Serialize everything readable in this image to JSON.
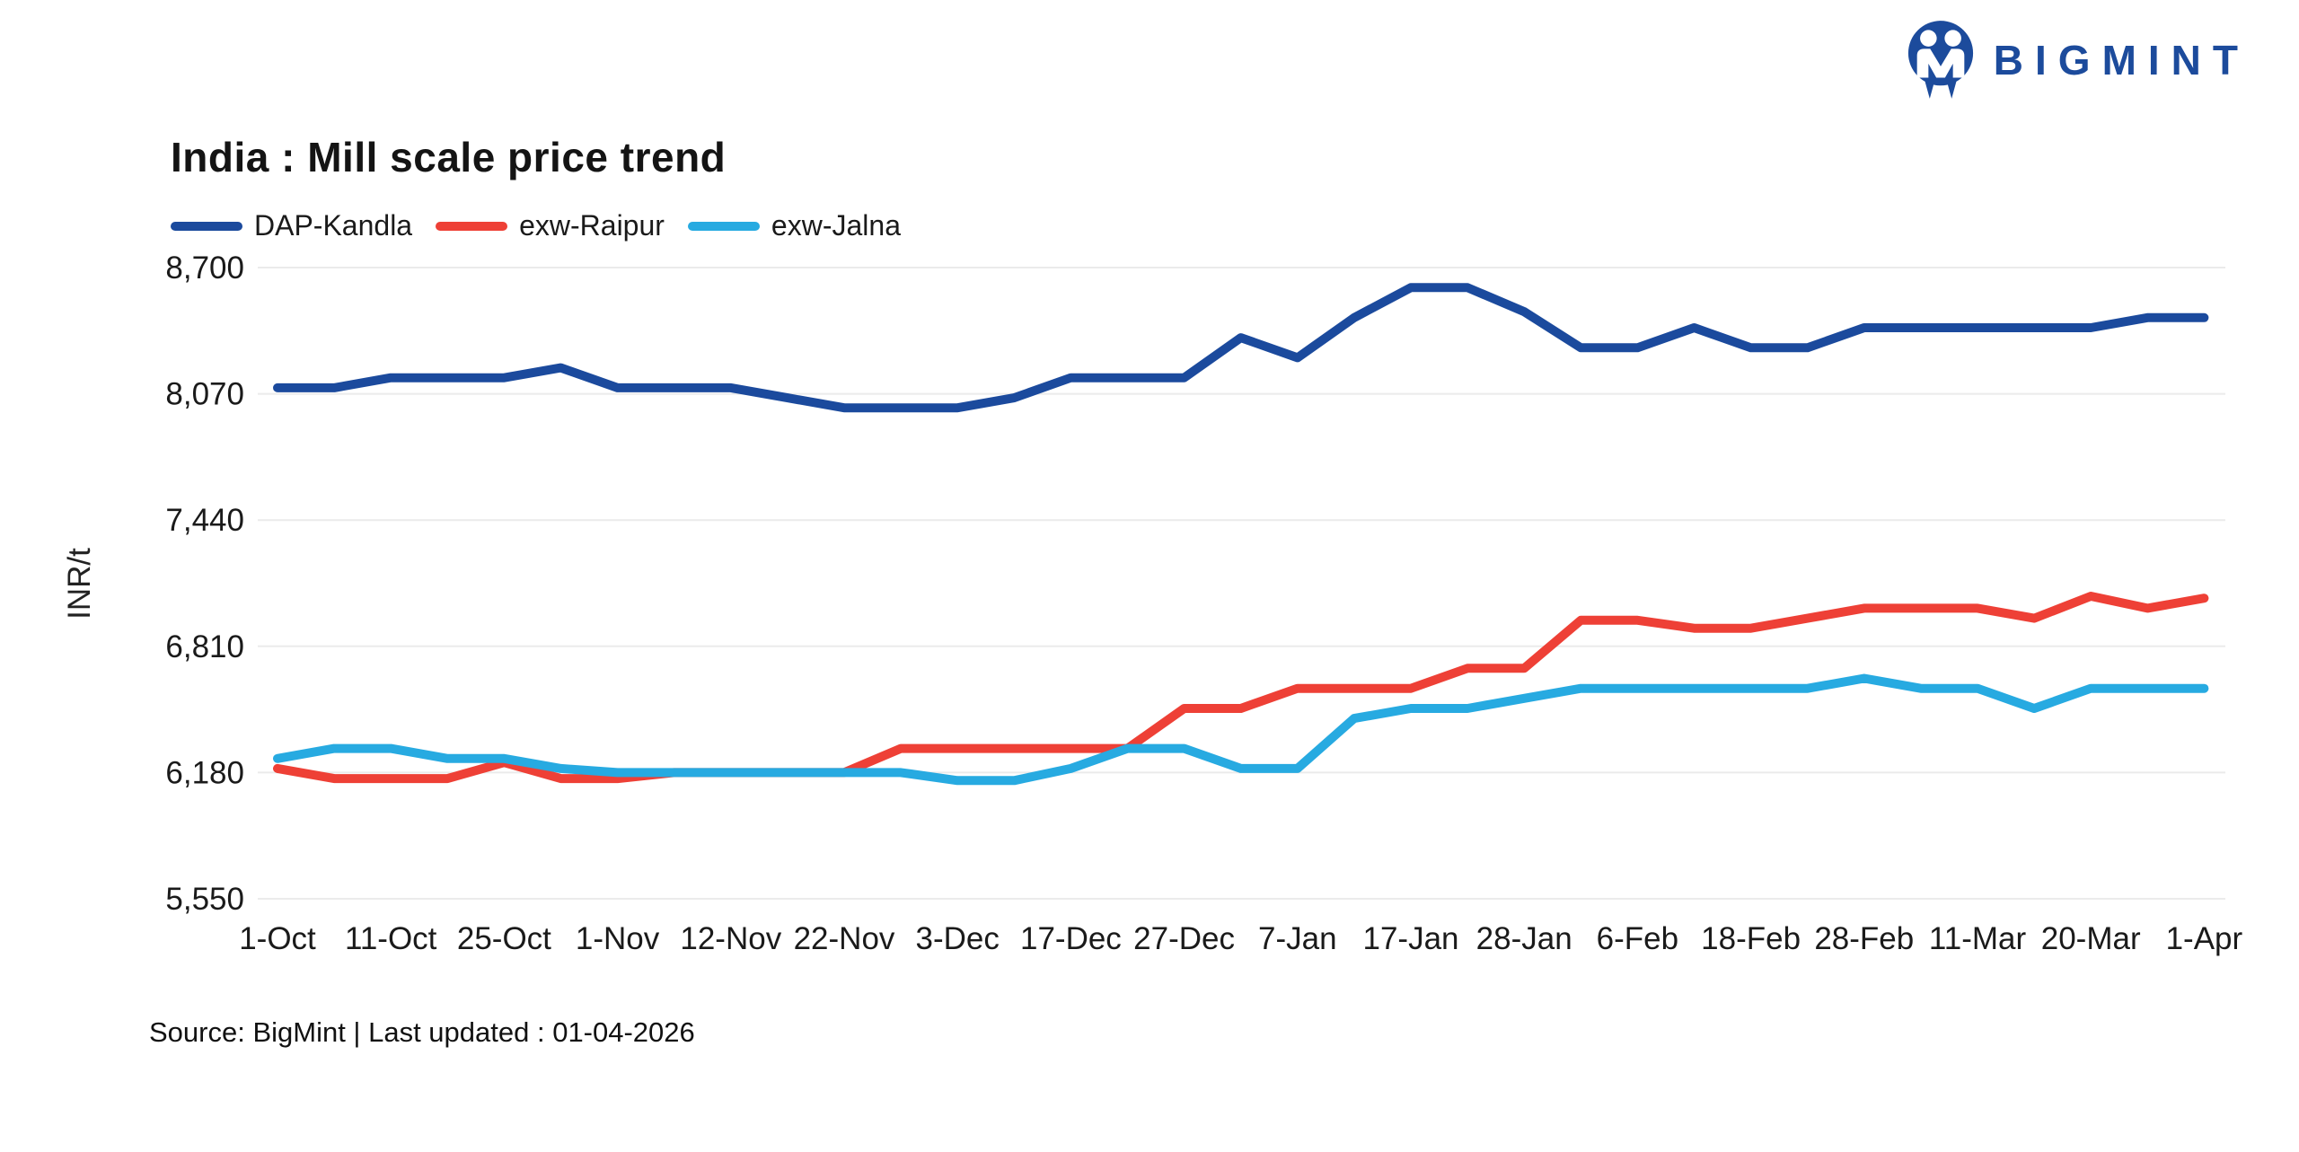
{
  "page": {
    "background": "#ffffff"
  },
  "header": {
    "title": "India : Mill scale price trend"
  },
  "brand": {
    "name": "BIGMINT",
    "color": "#1c4b9c"
  },
  "chart_data": {
    "type": "line",
    "title": "India : Mill scale price trend",
    "ylabel": "INR/t",
    "grid": "horizontal",
    "legend_position": "top-left",
    "y_axis": {
      "min": 5550,
      "max": 8700,
      "tick_interval": 630
    },
    "y_tick_values": [
      8700,
      8070,
      7440,
      6810,
      6180,
      5550
    ],
    "y_tick_labels": [
      "8,700",
      "8,070",
      "7,440",
      "6,810",
      "6,180",
      "5,550"
    ],
    "x_ticks": [
      "1-Oct",
      "11-Oct",
      "25-Oct",
      "1-Nov",
      "12-Nov",
      "22-Nov",
      "3-Dec",
      "17-Dec",
      "27-Dec",
      "7-Jan",
      "17-Jan",
      "28-Jan",
      "6-Feb",
      "18-Feb",
      "28-Feb",
      "11-Mar",
      "20-Mar",
      "1-Apr"
    ],
    "x_tick_indices": [
      0,
      2,
      4,
      6,
      8,
      10,
      12,
      14,
      16,
      18,
      20,
      22,
      24,
      26,
      28,
      30,
      32,
      34
    ],
    "n_points": 35,
    "series": [
      {
        "name": "DAP-Kandla",
        "color": "#1b4a9d",
        "values": [
          8100,
          8100,
          8150,
          8150,
          8150,
          8200,
          8100,
          8100,
          8100,
          8050,
          8000,
          8000,
          8000,
          8050,
          8150,
          8150,
          8150,
          8350,
          8250,
          8450,
          8600,
          8600,
          8480,
          8300,
          8300,
          8400,
          8300,
          8300,
          8400,
          8400,
          8400,
          8400,
          8400,
          8450,
          8450
        ]
      },
      {
        "name": "exw-Raipur",
        "color": "#ee4036",
        "values": [
          6200,
          6150,
          6150,
          6150,
          6230,
          6150,
          6150,
          6180,
          6180,
          6180,
          6180,
          6300,
          6300,
          6300,
          6300,
          6300,
          6500,
          6500,
          6600,
          6600,
          6600,
          6700,
          6700,
          6940,
          6940,
          6900,
          6900,
          6950,
          7000,
          7000,
          7000,
          6950,
          7060,
          7000,
          7050
        ]
      },
      {
        "name": "exw-Jalna",
        "color": "#27aae1",
        "values": [
          6250,
          6300,
          6300,
          6250,
          6250,
          6200,
          6180,
          6180,
          6180,
          6180,
          6180,
          6180,
          6140,
          6140,
          6200,
          6300,
          6300,
          6200,
          6200,
          6450,
          6500,
          6500,
          6550,
          6600,
          6600,
          6600,
          6600,
          6600,
          6650,
          6600,
          6600,
          6500,
          6600,
          6600,
          6600
        ]
      }
    ]
  },
  "footer": {
    "source": "Source: BigMint | Last updated : 01-04-2026"
  }
}
